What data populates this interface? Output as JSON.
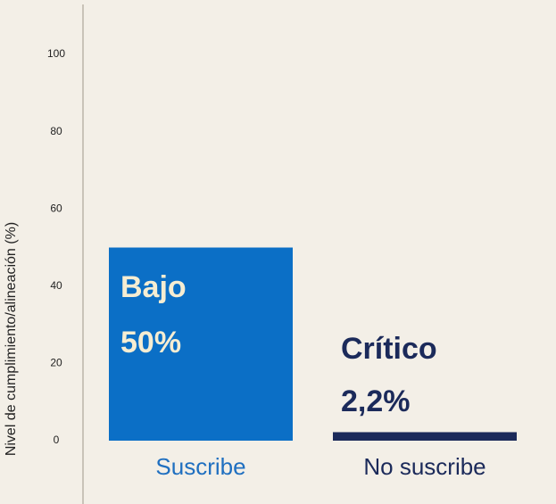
{
  "chart_data": {
    "type": "bar",
    "y_axis_label": "Nivel de cumplimiento/alineación (%)",
    "categories": [
      "Suscribe",
      "No suscribe"
    ],
    "values": [
      50,
      2.2
    ],
    "value_labels": [
      "50%",
      "2,2%"
    ],
    "level_labels": [
      "Bajo",
      "Crítico"
    ],
    "colors": [
      "#0b6fc6",
      "#1b2a5a"
    ],
    "ylim": [
      0,
      100
    ],
    "yticks": [
      0,
      20,
      40,
      60,
      80,
      100
    ],
    "grid": false
  }
}
